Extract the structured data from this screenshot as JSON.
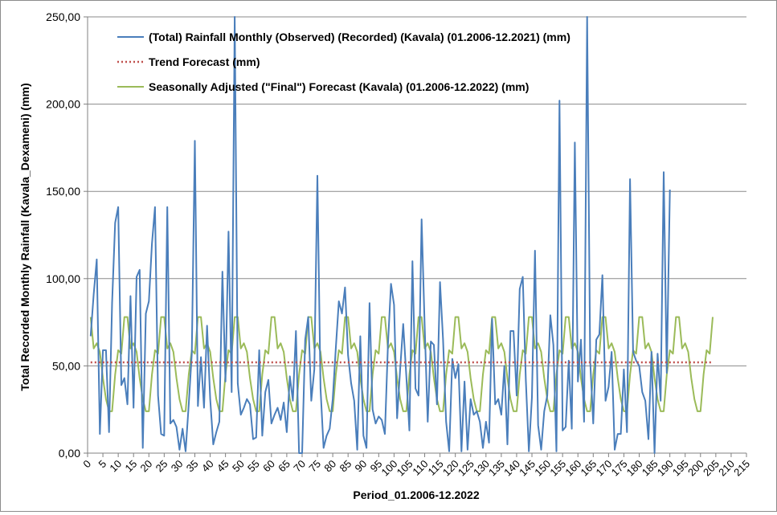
{
  "chart_data": {
    "type": "line",
    "xlabel": "Period_01.2006-12.2022",
    "ylabel": "Total Recorded Monthly Rainfall (Kavala_Dexameni) (mm)",
    "xlim": [
      0,
      215
    ],
    "ylim": [
      0,
      250
    ],
    "x_ticks": [
      0,
      5,
      10,
      15,
      20,
      25,
      30,
      35,
      40,
      45,
      50,
      55,
      60,
      65,
      70,
      75,
      80,
      85,
      90,
      95,
      100,
      105,
      110,
      115,
      120,
      125,
      130,
      135,
      140,
      145,
      150,
      155,
      160,
      165,
      170,
      175,
      180,
      185,
      190,
      195,
      200,
      205,
      210,
      215
    ],
    "y_ticks": [
      {
        "value": 0,
        "label": "0,00"
      },
      {
        "value": 50,
        "label": "50,00"
      },
      {
        "value": 100,
        "label": "100,00"
      },
      {
        "value": 150,
        "label": "150,00"
      },
      {
        "value": 200,
        "label": "200,00"
      },
      {
        "value": 250,
        "label": "250,00"
      }
    ],
    "grid": "horizontal",
    "legend_position": "top-left",
    "series": [
      {
        "name": "(Total) Rainfall Monthly (Observed) (Recorded) (Kavala) (01.2006-12.2021) (mm)",
        "color": "#4a7ebb",
        "style": "solid",
        "x_start": 1,
        "values": [
          67,
          91,
          111,
          11,
          59,
          59,
          12,
          86,
          132,
          141,
          39,
          43,
          28,
          90,
          26,
          101,
          105,
          3,
          80,
          87,
          120,
          141,
          33,
          11,
          10,
          141,
          17,
          19,
          15,
          2,
          14,
          1,
          28,
          57,
          179,
          27,
          55,
          26,
          73,
          31,
          5,
          12,
          18,
          104,
          41,
          127,
          35,
          254,
          40,
          22,
          26,
          31,
          28,
          8,
          9,
          59,
          10,
          35,
          42,
          17,
          22,
          26,
          19,
          29,
          12,
          44,
          30,
          70,
          0,
          0,
          65,
          78,
          30,
          48,
          159,
          37,
          3,
          10,
          14,
          31,
          60,
          87,
          80,
          95,
          56,
          40,
          30,
          2,
          67,
          10,
          3,
          86,
          25,
          17,
          21,
          19,
          11,
          62,
          97,
          85,
          20,
          48,
          74,
          44,
          13,
          110,
          37,
          33,
          134,
          73,
          18,
          64,
          62,
          28,
          98,
          65,
          18,
          1,
          54,
          43,
          51,
          1,
          41,
          2,
          31,
          22,
          24,
          18,
          3,
          18,
          6,
          77,
          28,
          31,
          22,
          50,
          5,
          70,
          70,
          33,
          94,
          101,
          42,
          1,
          32,
          116,
          16,
          2,
          24,
          33,
          79,
          62,
          1,
          202,
          13,
          15,
          53,
          14,
          178,
          41,
          65,
          18,
          254,
          53,
          17,
          65,
          68,
          102,
          30,
          38,
          58,
          2,
          11,
          11,
          48,
          12,
          157,
          58,
          53,
          50,
          35,
          30,
          8,
          58,
          0,
          57,
          30,
          161,
          46,
          151
        ],
        "note_clipped_peaks": "values above 250 are clipped at the top of the plot area"
      },
      {
        "name": "Trend Forecast (mm)",
        "color": "#c0504d",
        "style": "dotted",
        "x": [
          1,
          204
        ],
        "values": [
          52,
          52
        ]
      },
      {
        "name": "Seasonally Adjusted (\"Final\") Forecast (Kavala) (01.2006-12.2022) (mm)",
        "color": "#9bbb59",
        "style": "solid",
        "x_start": 1,
        "seasonal_pattern": [
          78,
          60,
          63,
          58,
          43,
          31,
          24,
          24,
          45,
          59,
          57,
          78
        ],
        "months": 204
      }
    ]
  }
}
